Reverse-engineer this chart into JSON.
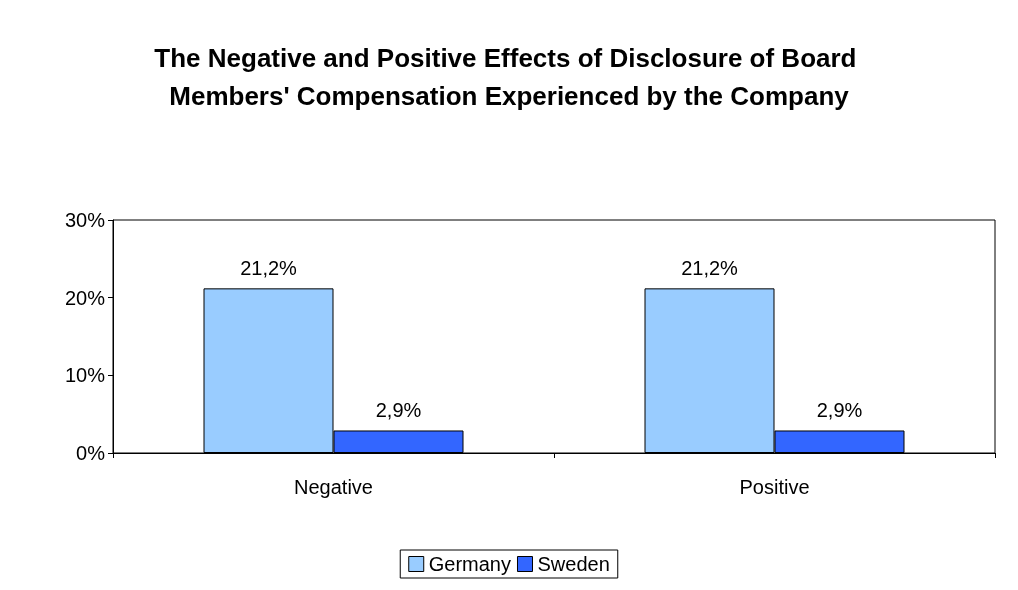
{
  "chart_data": {
    "type": "bar",
    "title": "The Negative and Positive Effects of Disclosure of Board Members' Compensation Experienced by the Company",
    "categories": [
      "Negative",
      "Positive"
    ],
    "series": [
      {
        "name": "Germany",
        "color": "#99ccff",
        "values": [
          21.2,
          21.2
        ],
        "value_labels": [
          "21,2%",
          "21,2%"
        ]
      },
      {
        "name": "Sweden",
        "color": "#3366ff",
        "values": [
          2.9,
          2.9
        ],
        "value_labels": [
          "2,9%",
          "2,9%"
        ]
      }
    ],
    "ylim": [
      0,
      30
    ],
    "yticks": [
      {
        "value": 0,
        "label": "0%"
      },
      {
        "value": 10,
        "label": "10%"
      },
      {
        "value": 20,
        "label": "20%"
      },
      {
        "value": 30,
        "label": "30%"
      }
    ],
    "grid": false,
    "legend": "bottom"
  }
}
